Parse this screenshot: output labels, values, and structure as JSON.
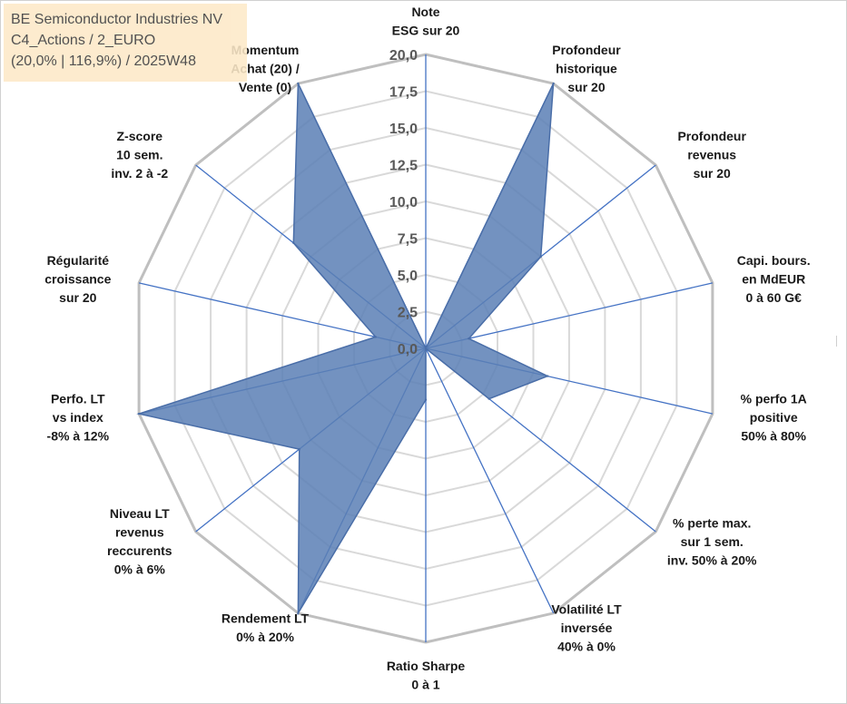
{
  "info_box": {
    "company": "BE Semiconductor Industries NV",
    "category": "C4_Actions / 2_EURO",
    "stats": "(20,0% | 116,9%) / 2025W48"
  },
  "chart_data": {
    "type": "radar",
    "title": "",
    "axis_range": [
      0,
      20
    ],
    "tick_values": [
      0,
      2.5,
      5,
      7.5,
      10,
      12.5,
      15,
      17.5,
      20
    ],
    "tick_labels": [
      "0,0",
      "2,5",
      "5,0",
      "7,5",
      "10,0",
      "12,5",
      "15,0",
      "17,5",
      "20,0"
    ],
    "colors": {
      "fill": "#5b7fb5",
      "stroke": "#4a6ea8",
      "axis": "#4472c4",
      "grid": "#bfbfbf",
      "grid_inner": "#d9d9d9"
    },
    "axes": [
      {
        "label": [
          "Note",
          "ESG sur 20"
        ],
        "value": 0
      },
      {
        "label": [
          "Profondeur",
          "historique",
          "sur 20"
        ],
        "value": 20
      },
      {
        "label": [
          "Profondeur",
          "revenus",
          "sur 20"
        ],
        "value": 10
      },
      {
        "label": [
          "Capi. bours.",
          "en MdEUR",
          "0 à 60 G€"
        ],
        "value": 3
      },
      {
        "label": [
          "% perfo 1A",
          "positive",
          "50% à 80%"
        ],
        "value": 8.5
      },
      {
        "label": [
          "% perte max.",
          "sur 1 sem.",
          "inv. 50% à 20%"
        ],
        "value": 5.5
      },
      {
        "label": [
          "Volatilité LT",
          "inversée",
          "40% à 0%"
        ],
        "value": 0
      },
      {
        "label": [
          "Ratio Sharpe",
          "0 à 1"
        ],
        "value": 3.5
      },
      {
        "label": [
          "Rendement LT",
          "0% à 20%"
        ],
        "value": 20
      },
      {
        "label": [
          "Niveau LT",
          "revenus",
          "reccurents",
          "0% à 6%"
        ],
        "value": 11
      },
      {
        "label": [
          "Perfo. LT",
          "vs index",
          "-8% à 12%"
        ],
        "value": 20
      },
      {
        "label": [
          "Régularité",
          "croissance",
          "sur 20"
        ],
        "value": 3.5
      },
      {
        "label": [
          "Z-score",
          "10 sem.",
          "inv. 2 à -2"
        ],
        "value": 11.5
      },
      {
        "label": [
          "Momentum",
          "Achat (20) /",
          "Vente (0)"
        ],
        "value": 20
      }
    ]
  }
}
